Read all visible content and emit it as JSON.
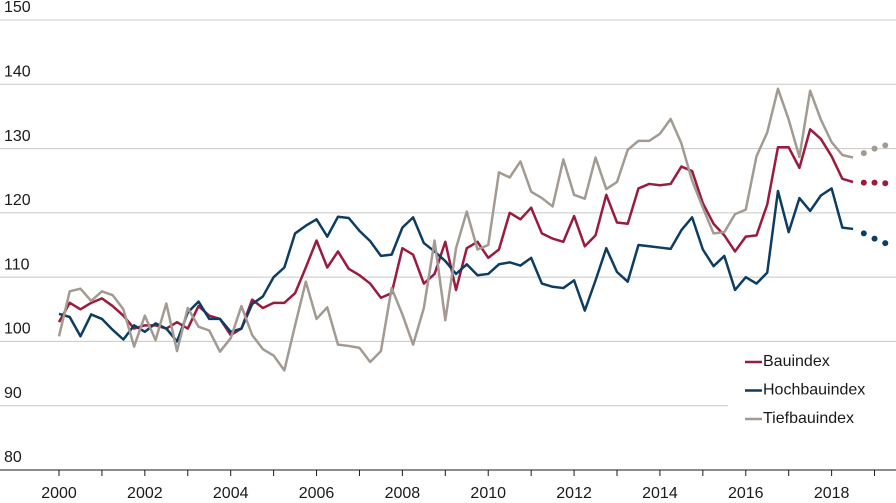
{
  "chart_data": {
    "type": "line",
    "x": [
      2000,
      2000.25,
      2000.5,
      2000.75,
      2001,
      2001.25,
      2001.5,
      2001.75,
      2002,
      2002.25,
      2002.5,
      2002.75,
      2003,
      2003.25,
      2003.5,
      2003.75,
      2004,
      2004.25,
      2004.5,
      2004.75,
      2005,
      2005.25,
      2005.5,
      2005.75,
      2006,
      2006.25,
      2006.5,
      2006.75,
      2007,
      2007.25,
      2007.5,
      2007.75,
      2008,
      2008.25,
      2008.5,
      2008.75,
      2009,
      2009.25,
      2009.5,
      2009.75,
      2010,
      2010.25,
      2010.5,
      2010.75,
      2011,
      2011.25,
      2011.5,
      2011.75,
      2012,
      2012.25,
      2012.5,
      2012.75,
      2013,
      2013.25,
      2013.5,
      2013.75,
      2014,
      2014.25,
      2014.5,
      2014.75,
      2015,
      2015.25,
      2015.5,
      2015.75,
      2016,
      2016.25,
      2016.5,
      2016.75,
      2017,
      2017.25,
      2017.5,
      2017.75,
      2018,
      2018.25,
      2018.5
    ],
    "forecast_x": [
      2018.75,
      2019,
      2019.25
    ],
    "series": [
      {
        "name": "Bauindex",
        "color": "#9b1b3f",
        "values": [
          103,
          106,
          105,
          106,
          106.7,
          105.5,
          104,
          102,
          102.5,
          102.5,
          102,
          103,
          102,
          105.5,
          104,
          103.5,
          101,
          102,
          106.5,
          105.2,
          106,
          106,
          107.5,
          111.5,
          115.7,
          111.5,
          114,
          111.3,
          110.3,
          109,
          106.8,
          107.5,
          114.5,
          113.5,
          109,
          110.5,
          115.5,
          108,
          114.5,
          115.5,
          113,
          114.3,
          120,
          119,
          120.8,
          116.8,
          116,
          115.5,
          119.5,
          114.8,
          116.5,
          122.8,
          118.5,
          118.3,
          123.8,
          124.5,
          124.3,
          124.5,
          127.2,
          126.5,
          121.5,
          118.3,
          116.5,
          114,
          116.3,
          116.5,
          121.3,
          130.2,
          130.2,
          127,
          133,
          131.5,
          128.8,
          125.3,
          124.8
        ],
        "forecast_values": [
          124.7,
          124.7,
          124.6
        ]
      },
      {
        "name": "Hochbauindex",
        "color": "#0d3d63",
        "values": [
          104.3,
          103.8,
          100.8,
          104.2,
          103.5,
          101.8,
          100.3,
          102.5,
          101.5,
          102.8,
          102,
          100,
          104.5,
          106.2,
          103.5,
          103.5,
          101.5,
          102,
          105.8,
          107,
          110,
          111.5,
          116.8,
          118,
          119,
          116.3,
          119.4,
          119.2,
          117.2,
          115.6,
          113.3,
          113.5,
          117.7,
          119.3,
          115.3,
          114,
          112.5,
          110.5,
          112,
          110.3,
          110.5,
          112,
          112.3,
          111.8,
          113,
          109,
          108.5,
          108.3,
          109.5,
          104.8,
          109.5,
          114.5,
          110.8,
          109.3,
          115,
          114.8,
          114.6,
          114.4,
          117.3,
          119.3,
          114.3,
          111.7,
          113.3,
          108,
          110,
          109,
          110.7,
          123.4,
          117,
          122.3,
          120.3,
          122.7,
          123.8,
          117.7,
          117.5
        ],
        "forecast_values": [
          116.8,
          116,
          115.3
        ]
      },
      {
        "name": "Tiefbauindex",
        "color": "#a39a92",
        "values": [
          100.8,
          107.8,
          108.2,
          106.3,
          107.8,
          107.2,
          105,
          99.2,
          104,
          100.2,
          105.9,
          98.5,
          105.2,
          102.3,
          101.7,
          98.4,
          100.5,
          105.5,
          101,
          98.8,
          97.8,
          95.5,
          102.5,
          109.3,
          103.5,
          105.3,
          99.5,
          99.3,
          99,
          96.8,
          98.5,
          108.3,
          104.2,
          99.5,
          105.2,
          115.7,
          103.3,
          114.5,
          120.2,
          114.3,
          115,
          126.3,
          125.5,
          128,
          123.3,
          122.3,
          121,
          128.3,
          122.8,
          122.2,
          128.6,
          123.7,
          124.8,
          129.8,
          131.2,
          131.2,
          132.3,
          134.6,
          130.8,
          125,
          120.8,
          116.8,
          117,
          119.8,
          120.5,
          128.8,
          132.5,
          139.3,
          134.5,
          128.7,
          139,
          134.5,
          131,
          129,
          128.6
        ],
        "forecast_values": [
          129.3,
          130,
          130.5
        ]
      }
    ],
    "xlim": [
      2000,
      2019.5
    ],
    "xticks": [
      2000,
      2002,
      2004,
      2006,
      2008,
      2010,
      2012,
      2014,
      2016,
      2018
    ],
    "minor_xticks": [
      2001,
      2003,
      2005,
      2007,
      2009,
      2011,
      2013,
      2015,
      2017,
      2019
    ],
    "ylim": [
      80,
      150
    ],
    "yticks": [
      80,
      90,
      100,
      110,
      120,
      130,
      140,
      150
    ],
    "grid": true,
    "legend": "lower right"
  }
}
